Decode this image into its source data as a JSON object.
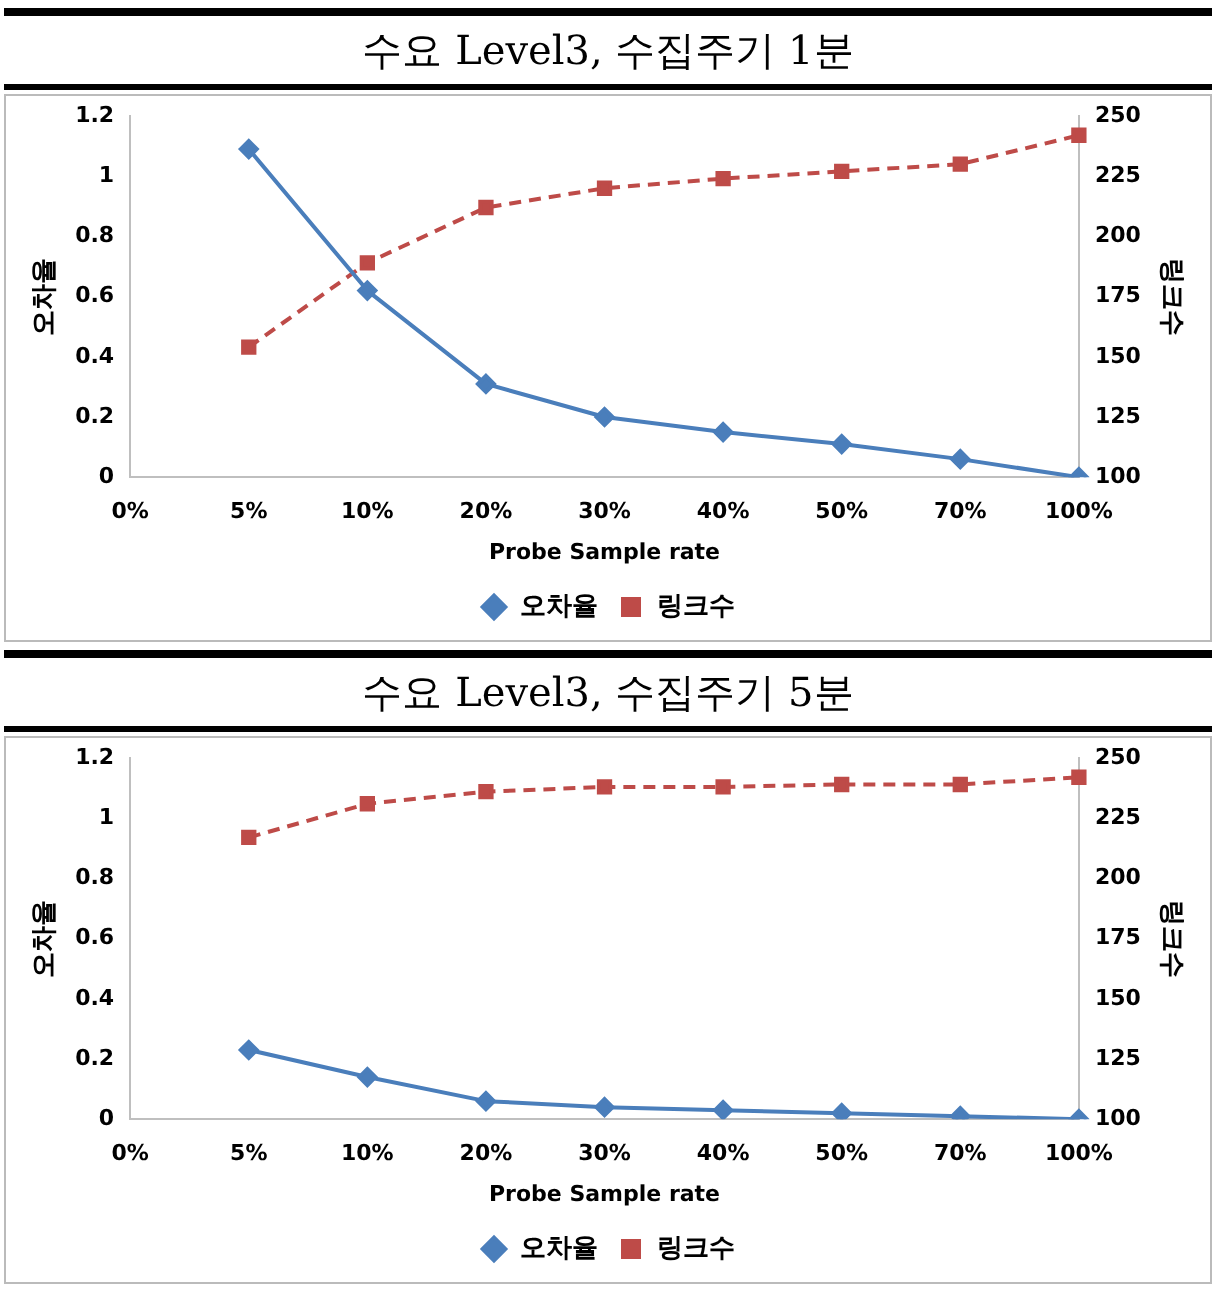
{
  "chart_data": [
    {
      "type": "line",
      "title": "수요 Level3, 수집주기 1분",
      "xlabel": "Probe Sample rate",
      "ylabel": "오차율",
      "y2label": "링크수",
      "categories": [
        "0%",
        "5%",
        "10%",
        "20%",
        "30%",
        "40%",
        "50%",
        "70%",
        "100%"
      ],
      "series": [
        {
          "name": "오차율",
          "color": "#4a7ebb",
          "marker": "diamond",
          "line_style": "solid",
          "values": [
            null,
            1.09,
            0.62,
            0.31,
            0.2,
            0.15,
            0.11,
            0.06,
            0
          ]
        },
        {
          "name": "링크수",
          "color": "#be4b48",
          "marker": "square",
          "line_style": "dashed",
          "axis": "y2",
          "values": [
            null,
            154,
            189,
            212,
            220,
            224,
            227,
            230,
            242
          ]
        }
      ],
      "ylim": [
        0,
        1.2
      ],
      "yticks": [
        0,
        0.2,
        0.4,
        0.6,
        0.8,
        1,
        1.2
      ],
      "y2lim": [
        100,
        250
      ],
      "y2ticks": [
        100,
        125,
        150,
        175,
        200,
        225,
        250
      ],
      "grid": false,
      "legend": "bottom"
    },
    {
      "type": "line",
      "title": "수요 Level3, 수집주기 5분",
      "xlabel": "Probe Sample rate",
      "ylabel": "오차율",
      "y2label": "링크수",
      "categories": [
        "0%",
        "5%",
        "10%",
        "20%",
        "30%",
        "40%",
        "50%",
        "70%",
        "100%"
      ],
      "series": [
        {
          "name": "오차율",
          "color": "#4a7ebb",
          "marker": "diamond",
          "line_style": "solid",
          "values": [
            null,
            0.23,
            0.14,
            0.06,
            0.04,
            0.03,
            0.02,
            0.01,
            0
          ]
        },
        {
          "name": "링크수",
          "color": "#be4b48",
          "marker": "square",
          "line_style": "dashed",
          "axis": "y2",
          "values": [
            null,
            217,
            231,
            236,
            238,
            238,
            239,
            239,
            242
          ]
        }
      ],
      "ylim": [
        0,
        1.2
      ],
      "yticks": [
        0,
        0.2,
        0.4,
        0.6,
        0.8,
        1,
        1.2
      ],
      "y2lim": [
        100,
        250
      ],
      "y2ticks": [
        100,
        125,
        150,
        175,
        200,
        225,
        250
      ],
      "grid": false,
      "legend": "bottom"
    }
  ]
}
